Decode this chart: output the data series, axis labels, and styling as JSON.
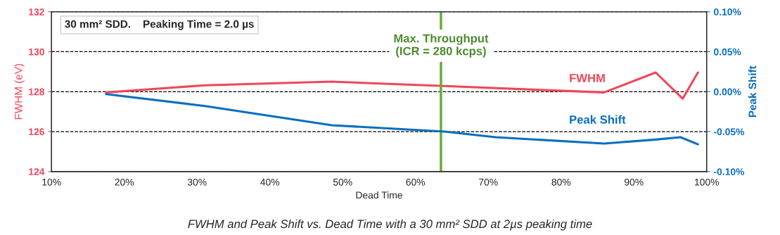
{
  "chart_data": {
    "type": "line",
    "x": [
      17.5,
      31.1,
      48.5,
      64,
      80.4,
      85.9,
      93,
      96.7,
      98.8
    ],
    "series": [
      {
        "name": "FWHM",
        "color": "#f0465a",
        "values": [
          127.96,
          128.32,
          128.5,
          128.28,
          128.04,
          127.96,
          128.96,
          127.65,
          128.96
        ]
      },
      {
        "name": "Peak Shift",
        "color": "#0a6fbf",
        "axis": "y2",
        "x": [
          17.5,
          31.1,
          48.5,
          64,
          71,
          85.9,
          93,
          96.4,
          98.8
        ],
        "values": [
          -0.003,
          -0.018,
          -0.042,
          -0.05,
          -0.057,
          -0.065,
          -0.06,
          -0.057,
          -0.066
        ]
      }
    ],
    "xlabel": "Dead Time",
    "ylabel": "FWHM (eV)",
    "y2label": "Peak Shift",
    "xlim": [
      10,
      100
    ],
    "xticks": [
      {
        "value": 10,
        "label": "10%"
      },
      {
        "value": 20,
        "label": "20%"
      },
      {
        "value": 30,
        "label": "30%"
      },
      {
        "value": 40,
        "label": "40%"
      },
      {
        "value": 50,
        "label": "50%"
      },
      {
        "value": 60,
        "label": "60%"
      },
      {
        "value": 70,
        "label": "70%"
      },
      {
        "value": 80,
        "label": "80%"
      },
      {
        "value": 90,
        "label": "90%"
      },
      {
        "value": 100,
        "label": "100%"
      }
    ],
    "ylim": [
      124,
      132
    ],
    "yticks": [
      124,
      126,
      128,
      130,
      132
    ],
    "y2lim": [
      -0.1,
      0.1
    ],
    "y2ticks": [
      {
        "value": -0.1,
        "label": "-0.10%"
      },
      {
        "value": -0.05,
        "label": "-0.05%"
      },
      {
        "value": 0,
        "label": "0.00%"
      },
      {
        "value": 0.05,
        "label": "0.05%"
      },
      {
        "value": 0.1,
        "label": "0.10%"
      }
    ],
    "grid": "y",
    "marker": "none",
    "line_style": "solid",
    "legend": false,
    "ref_lines": [
      {
        "axis": "x",
        "value": 63.5,
        "color": "#6aaa3a"
      }
    ],
    "annotations": [
      "30 mm² SDD.    Peaking Time = 2.0 µs",
      "FWHM and Peak Shift vs. Dead Time with a 30 mm² SDD at 2µs peaking time",
      {
        "text": "Max. Throughput\n(ICR = 280 kcps)",
        "x": 63.5,
        "y": 130.3
      }
    ]
  }
}
